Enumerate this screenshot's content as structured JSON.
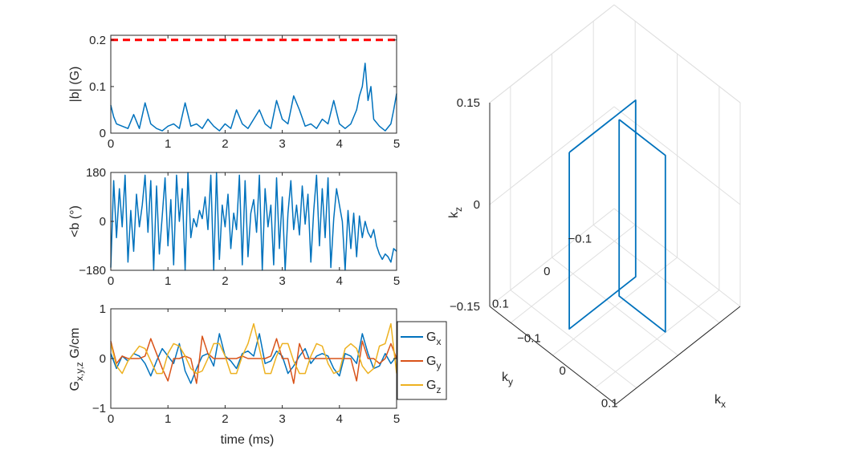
{
  "chart_data": [
    {
      "id": "b_magnitude",
      "type": "line",
      "ylabel": "|b| (G)",
      "xlim": [
        0,
        5
      ],
      "ylim": [
        0,
        0.21
      ],
      "xticks": [
        "0",
        "1",
        "2",
        "3",
        "4",
        "5"
      ],
      "yticks": [
        "0",
        "0.1",
        "0.2"
      ],
      "threshold": {
        "value": 0.2,
        "color": "#ff0000",
        "style": "dashed"
      },
      "series": [
        {
          "color": "#0072bd",
          "x": [
            0,
            0.05,
            0.1,
            0.2,
            0.3,
            0.4,
            0.5,
            0.6,
            0.7,
            0.8,
            0.9,
            1.0,
            1.1,
            1.2,
            1.3,
            1.4,
            1.5,
            1.6,
            1.7,
            1.8,
            1.9,
            2.0,
            2.1,
            2.2,
            2.3,
            2.4,
            2.5,
            2.6,
            2.7,
            2.8,
            2.9,
            3.0,
            3.1,
            3.2,
            3.3,
            3.4,
            3.5,
            3.6,
            3.7,
            3.8,
            3.9,
            4.0,
            4.1,
            4.2,
            4.3,
            4.35,
            4.4,
            4.45,
            4.5,
            4.55,
            4.6,
            4.7,
            4.8,
            4.9,
            4.95,
            5.0
          ],
          "y": [
            0.06,
            0.035,
            0.02,
            0.015,
            0.01,
            0.04,
            0.01,
            0.065,
            0.02,
            0.01,
            0.005,
            0.015,
            0.02,
            0.01,
            0.065,
            0.015,
            0.02,
            0.01,
            0.03,
            0.015,
            0.005,
            0.02,
            0.01,
            0.05,
            0.02,
            0.01,
            0.03,
            0.05,
            0.02,
            0.01,
            0.07,
            0.03,
            0.02,
            0.08,
            0.05,
            0.015,
            0.02,
            0.01,
            0.03,
            0.02,
            0.07,
            0.02,
            0.01,
            0.02,
            0.05,
            0.08,
            0.1,
            0.15,
            0.07,
            0.1,
            0.03,
            0.015,
            0.005,
            0.02,
            0.05,
            0.085
          ]
        }
      ]
    },
    {
      "id": "b_phase",
      "type": "line",
      "ylabel": "<b (°)",
      "xlim": [
        0,
        5
      ],
      "ylim": [
        -180,
        180
      ],
      "xticks": [
        "0",
        "1",
        "2",
        "3",
        "4",
        "5"
      ],
      "yticks": [
        "−180",
        "0",
        "180"
      ],
      "series": [
        {
          "color": "#0072bd",
          "x": [
            0,
            0.05,
            0.1,
            0.15,
            0.2,
            0.25,
            0.3,
            0.35,
            0.4,
            0.45,
            0.5,
            0.55,
            0.6,
            0.65,
            0.7,
            0.75,
            0.8,
            0.85,
            0.9,
            0.95,
            1.0,
            1.05,
            1.1,
            1.15,
            1.2,
            1.25,
            1.3,
            1.35,
            1.4,
            1.45,
            1.5,
            1.55,
            1.6,
            1.65,
            1.7,
            1.75,
            1.8,
            1.85,
            1.9,
            1.95,
            2.0,
            2.05,
            2.1,
            2.15,
            2.2,
            2.25,
            2.3,
            2.35,
            2.4,
            2.45,
            2.5,
            2.55,
            2.6,
            2.65,
            2.7,
            2.75,
            2.8,
            2.85,
            2.9,
            2.95,
            3.0,
            3.05,
            3.1,
            3.15,
            3.2,
            3.25,
            3.3,
            3.35,
            3.4,
            3.45,
            3.5,
            3.55,
            3.6,
            3.65,
            3.7,
            3.75,
            3.8,
            3.85,
            3.9,
            3.95,
            4.0,
            4.05,
            4.1,
            4.15,
            4.2,
            4.25,
            4.3,
            4.35,
            4.4,
            4.45,
            4.5,
            4.55,
            4.6,
            4.65,
            4.7,
            4.75,
            4.8,
            4.85,
            4.9,
            4.95,
            5.0
          ],
          "y": [
            -170,
            150,
            -60,
            120,
            -20,
            170,
            -150,
            40,
            -110,
            100,
            -20,
            60,
            170,
            -40,
            150,
            -180,
            130,
            -120,
            20,
            160,
            -90,
            80,
            -160,
            170,
            0,
            120,
            -180,
            180,
            -60,
            10,
            -20,
            40,
            10,
            90,
            -30,
            170,
            -180,
            180,
            -140,
            60,
            -20,
            100,
            -100,
            30,
            -30,
            170,
            -160,
            150,
            -130,
            30,
            80,
            -40,
            170,
            -180,
            120,
            -20,
            60,
            -160,
            160,
            -100,
            90,
            -180,
            30,
            150,
            -30,
            60,
            -50,
            130,
            -10,
            100,
            -150,
            40,
            170,
            -90,
            120,
            -60,
            160,
            -170,
            10,
            120,
            60,
            0,
            -180,
            40,
            -100,
            30,
            -130,
            20,
            -60,
            0,
            -40,
            -60,
            -30,
            -90,
            -120,
            -140,
            -120,
            -130,
            -150,
            -100,
            -110
          ]
        }
      ]
    },
    {
      "id": "gradients",
      "type": "line",
      "xlabel": "time (ms)",
      "ylabel": "G_x,y,z G/cm",
      "xlim": [
        0,
        5
      ],
      "ylim": [
        -1,
        1
      ],
      "xticks": [
        "0",
        "1",
        "2",
        "3",
        "4",
        "5"
      ],
      "yticks": [
        "−1",
        "0",
        "1"
      ],
      "legend": {
        "placement": "right-outside",
        "entries": [
          {
            "base": "G",
            "sub": "x"
          },
          {
            "base": "G",
            "sub": "y"
          },
          {
            "base": "G",
            "sub": "z"
          }
        ]
      },
      "series": [
        {
          "color": "#0072bd",
          "x": [
            0,
            0.1,
            0.2,
            0.3,
            0.4,
            0.5,
            0.6,
            0.7,
            0.8,
            0.9,
            1.0,
            1.1,
            1.2,
            1.3,
            1.4,
            1.5,
            1.6,
            1.7,
            1.8,
            1.9,
            2.0,
            2.1,
            2.2,
            2.3,
            2.4,
            2.5,
            2.6,
            2.7,
            2.8,
            2.9,
            3.0,
            3.1,
            3.2,
            3.3,
            3.4,
            3.5,
            3.6,
            3.7,
            3.8,
            3.9,
            4.0,
            4.1,
            4.2,
            4.3,
            4.4,
            4.5,
            4.6,
            4.7,
            4.8,
            4.9,
            5.0
          ],
          "y": [
            0.1,
            -0.2,
            0.05,
            -0.05,
            0.1,
            0.05,
            -0.1,
            -0.35,
            -0.05,
            0.2,
            0.05,
            -0.1,
            0.3,
            -0.25,
            -0.5,
            -0.2,
            0.05,
            0.1,
            -0.15,
            0.5,
            0.05,
            -0.05,
            -0.2,
            0.1,
            0.15,
            0.05,
            0.5,
            -0.1,
            -0.05,
            0.15,
            0.05,
            -0.3,
            -0.15,
            0.05,
            0.2,
            -0.1,
            0.05,
            0.1,
            0.05,
            -0.2,
            -0.35,
            0.1,
            0.05,
            -0.1,
            0.5,
            0.1,
            -0.2,
            -0.15,
            0.1,
            -0.1,
            0.05
          ]
        },
        {
          "color": "#d95319",
          "x": [
            0,
            0.1,
            0.2,
            0.3,
            0.4,
            0.5,
            0.6,
            0.7,
            0.8,
            0.9,
            1.0,
            1.1,
            1.2,
            1.3,
            1.4,
            1.5,
            1.6,
            1.7,
            1.8,
            1.9,
            2.0,
            2.1,
            2.2,
            2.3,
            2.4,
            2.5,
            2.6,
            2.7,
            2.8,
            2.9,
            3.0,
            3.1,
            3.2,
            3.3,
            3.4,
            3.5,
            3.6,
            3.7,
            3.8,
            3.9,
            4.0,
            4.1,
            4.2,
            4.3,
            4.4,
            4.5,
            4.6,
            4.7,
            4.8,
            4.9,
            5.0
          ],
          "y": [
            0.35,
            -0.1,
            0.05,
            0,
            0,
            0,
            0.05,
            0.4,
            0.1,
            -0.2,
            -0.45,
            0,
            0,
            0.05,
            0,
            -0.5,
            0.45,
            0.1,
            0,
            0,
            0,
            0,
            0,
            0.05,
            0,
            0,
            0,
            0,
            0.05,
            0.4,
            0,
            0,
            -0.5,
            0.3,
            0,
            0,
            0,
            0,
            0,
            0,
            0,
            0,
            0,
            -0.45,
            0.35,
            0,
            0,
            -0.1,
            0,
            0.3,
            0
          ]
        },
        {
          "color": "#edb120",
          "x": [
            0,
            0.1,
            0.2,
            0.3,
            0.4,
            0.5,
            0.6,
            0.7,
            0.8,
            0.9,
            1.0,
            1.1,
            1.2,
            1.3,
            1.4,
            1.5,
            1.6,
            1.7,
            1.8,
            1.9,
            2.0,
            2.1,
            2.2,
            2.3,
            2.4,
            2.5,
            2.6,
            2.7,
            2.8,
            2.9,
            3.0,
            3.1,
            3.2,
            3.3,
            3.4,
            3.5,
            3.6,
            3.7,
            3.8,
            3.9,
            4.0,
            4.1,
            4.2,
            4.3,
            4.4,
            4.5,
            4.6,
            4.7,
            4.8,
            4.9,
            5.0
          ],
          "y": [
            0.3,
            -0.15,
            -0.3,
            -0.05,
            0.1,
            0.25,
            0.2,
            -0.05,
            -0.3,
            -0.3,
            0.1,
            0.3,
            0.25,
            0.05,
            -0.2,
            -0.3,
            -0.25,
            0,
            0.3,
            0.3,
            0.05,
            -0.3,
            -0.3,
            0.05,
            0.3,
            0.7,
            0.2,
            -0.3,
            -0.3,
            0.05,
            0.3,
            0.3,
            -0.05,
            -0.3,
            -0.3,
            0.05,
            0.3,
            0.25,
            -0.1,
            -0.3,
            -0.25,
            0.2,
            0.3,
            0.2,
            -0.15,
            -0.3,
            -0.2,
            0.25,
            0.3,
            0.7,
            -0.3
          ]
        }
      ]
    },
    {
      "id": "kspace_3d",
      "type": "line",
      "axis_labels": {
        "x": {
          "base": "k",
          "sub": "x"
        },
        "y": {
          "base": "k",
          "sub": "y"
        },
        "z": {
          "base": "k",
          "sub": "z"
        }
      },
      "xlim": [
        -0.15,
        0.15
      ],
      "ylim": [
        -0.15,
        0.15
      ],
      "zlim": [
        -0.15,
        0.15
      ],
      "xticks": [
        "−0.1",
        "0",
        "0.1"
      ],
      "yticks": [
        "−0.1",
        "0",
        "0.1"
      ],
      "zticks": [
        "−0.15",
        "0",
        "0.15"
      ],
      "grid": true,
      "series": [
        {
          "color": "#0072bd",
          "x": [
            0.01,
            0.12,
            0.12,
            0.01,
            0.01
          ],
          "y": [
            0.0,
            0.0,
            0.0,
            0.0,
            0.0
          ],
          "z": [
            0.13,
            0.13,
            -0.13,
            -0.13,
            0.13
          ]
        },
        {
          "color": "#0072bd",
          "x": [
            -0.01,
            -0.01,
            -0.01,
            -0.01,
            -0.01
          ],
          "y": [
            0.1,
            -0.06,
            -0.06,
            0.1,
            0.1
          ],
          "z": [
            0.12,
            0.12,
            -0.14,
            -0.14,
            0.12
          ]
        }
      ]
    }
  ]
}
